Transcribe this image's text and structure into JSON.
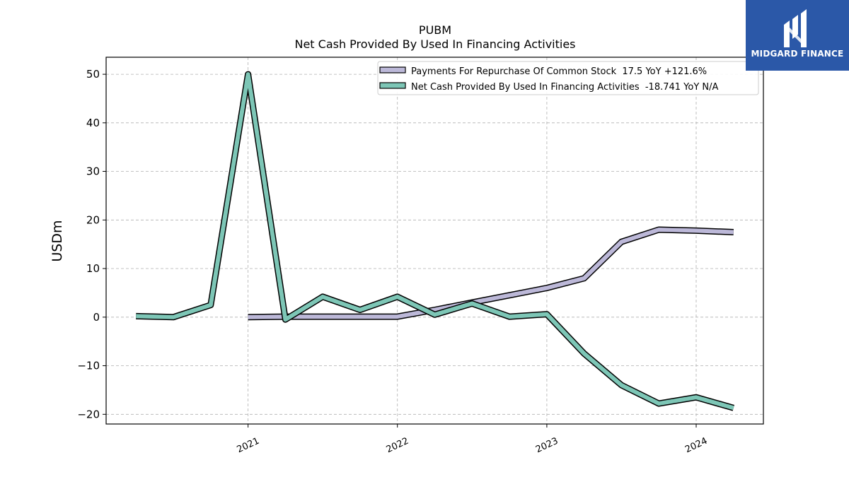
{
  "brand": {
    "name": "MIDGARD FINANCE",
    "bg_color": "#2b58a8"
  },
  "chart_data": {
    "type": "line",
    "title": "PUBM",
    "subtitle": "Net Cash Provided By Used In Financing Activities",
    "ylabel": "USDm",
    "xlabel": "",
    "ylim": [
      -22,
      53.5
    ],
    "xlim": [
      2020.05,
      2024.45
    ],
    "yticks": [
      50,
      40,
      30,
      20,
      10,
      0,
      -10,
      -20
    ],
    "ytick_labels": [
      "50",
      "40",
      "30",
      "20",
      "10",
      "0",
      "−10",
      "−20"
    ],
    "xticks": [
      2021,
      2022,
      2023,
      2024
    ],
    "xtick_labels": [
      "2021",
      "2022",
      "2023",
      "2024"
    ],
    "grid": true,
    "legend_position": "top-right",
    "series": [
      {
        "name": "Payments For Repurchase Of Common Stock",
        "legend_label": "Payments For Repurchase Of Common Stock  17.5 YoY +121.6%",
        "color": "#bcb8d8",
        "x": [
          2021.0,
          2021.25,
          2021.5,
          2021.75,
          2022.0,
          2022.25,
          2022.5,
          2022.75,
          2023.0,
          2023.25,
          2023.5,
          2023.75,
          2024.0,
          2024.25
        ],
        "y": [
          0.0,
          0.1,
          0.1,
          0.1,
          0.1,
          1.5,
          3.0,
          4.5,
          6.0,
          8.0,
          15.5,
          18.0,
          17.8,
          17.5
        ]
      },
      {
        "name": "Net Cash Provided By Used In Financing Activities",
        "legend_label": "Net Cash Provided By Used In Financing Activities  -18.741 YoY N/A",
        "color": "#7dc6b6",
        "x": [
          2020.25,
          2020.5,
          2020.75,
          2021.0,
          2021.25,
          2021.5,
          2021.75,
          2022.0,
          2022.25,
          2022.5,
          2022.75,
          2023.0,
          2023.25,
          2023.5,
          2023.75,
          2024.0,
          2024.25
        ],
        "y": [
          0.2,
          0.0,
          2.5,
          50.0,
          -0.5,
          4.2,
          1.5,
          4.2,
          0.5,
          2.8,
          0.1,
          0.6,
          -7.5,
          -14.0,
          -17.8,
          -16.5,
          -18.7
        ]
      }
    ]
  }
}
